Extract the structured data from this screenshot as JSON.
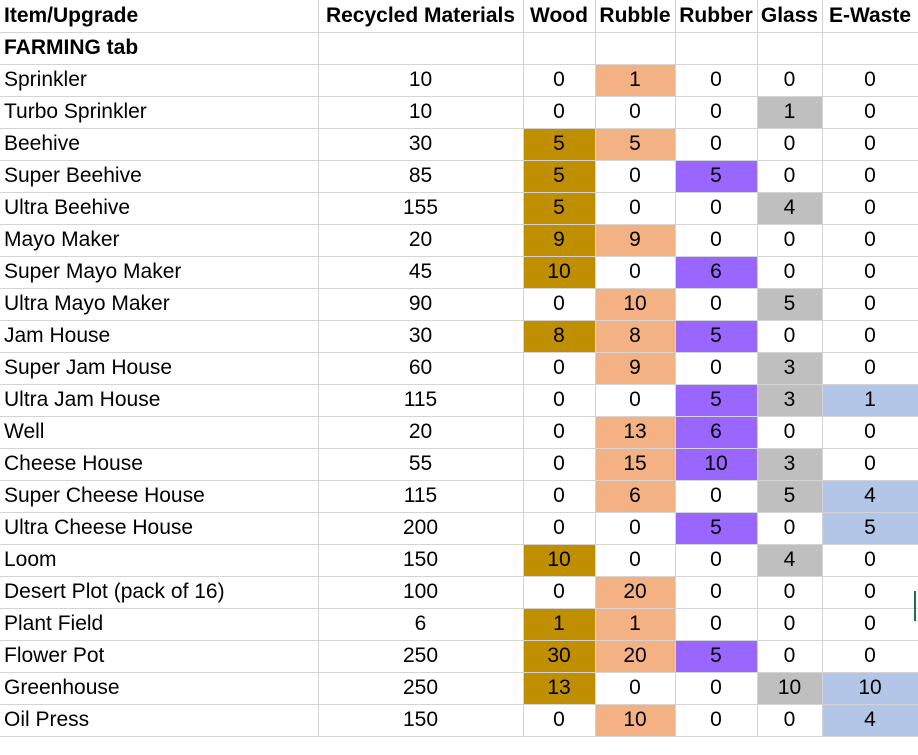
{
  "headers": [
    "Item/Upgrade",
    "Recycled Materials",
    "Wood",
    "Rubble",
    "Rubber",
    "Glass",
    "E-Waste"
  ],
  "section_label": "FARMING tab",
  "colors": {
    "wood": "#bf8f00",
    "rubble": "#f4b183",
    "rubber": "#9966ff",
    "glass": "#bfbfbf",
    "ewaste": "#b4c6e7"
  },
  "rows": [
    {
      "name": "Sprinkler",
      "recycled": "10",
      "wood": "0",
      "rubble": "1",
      "rubber": "0",
      "glass": "0",
      "ewaste": "0"
    },
    {
      "name": "Turbo Sprinkler",
      "recycled": "10",
      "wood": "0",
      "rubble": "0",
      "rubber": "0",
      "glass": "1",
      "ewaste": "0"
    },
    {
      "name": "Beehive",
      "recycled": "30",
      "wood": "5",
      "rubble": "5",
      "rubber": "0",
      "glass": "0",
      "ewaste": "0"
    },
    {
      "name": "Super Beehive",
      "recycled": "85",
      "wood": "5",
      "rubble": "0",
      "rubber": "5",
      "glass": "0",
      "ewaste": "0"
    },
    {
      "name": "Ultra Beehive",
      "recycled": "155",
      "wood": "5",
      "rubble": "0",
      "rubber": "0",
      "glass": "4",
      "ewaste": "0"
    },
    {
      "name": "Mayo Maker",
      "recycled": "20",
      "wood": "9",
      "rubble": "9",
      "rubber": "0",
      "glass": "0",
      "ewaste": "0"
    },
    {
      "name": "Super Mayo Maker",
      "recycled": "45",
      "wood": "10",
      "rubble": "0",
      "rubber": "6",
      "glass": "0",
      "ewaste": "0"
    },
    {
      "name": "Ultra Mayo Maker",
      "recycled": "90",
      "wood": "0",
      "rubble": "10",
      "rubber": "0",
      "glass": "5",
      "ewaste": "0"
    },
    {
      "name": "Jam House",
      "recycled": "30",
      "wood": "8",
      "rubble": "8",
      "rubber": "5",
      "glass": "0",
      "ewaste": "0"
    },
    {
      "name": "Super Jam House",
      "recycled": "60",
      "wood": "0",
      "rubble": "9",
      "rubber": "0",
      "glass": "3",
      "ewaste": "0"
    },
    {
      "name": "Ultra Jam House",
      "recycled": "115",
      "wood": "0",
      "rubble": "0",
      "rubber": "5",
      "glass": "3",
      "ewaste": "1"
    },
    {
      "name": "Well",
      "recycled": "20",
      "wood": "0",
      "rubble": "13",
      "rubber": "6",
      "glass": "0",
      "ewaste": "0"
    },
    {
      "name": "Cheese House",
      "recycled": "55",
      "wood": "0",
      "rubble": "15",
      "rubber": "10",
      "glass": "3",
      "ewaste": "0"
    },
    {
      "name": "Super Cheese House",
      "recycled": "115",
      "wood": "0",
      "rubble": "6",
      "rubber": "0",
      "glass": "5",
      "ewaste": "4"
    },
    {
      "name": "Ultra Cheese House",
      "recycled": "200",
      "wood": "0",
      "rubble": "0",
      "rubber": "5",
      "glass": "0",
      "ewaste": "5"
    },
    {
      "name": "Loom",
      "recycled": "150",
      "wood": "10",
      "rubble": "0",
      "rubber": "0",
      "glass": "4",
      "ewaste": "0"
    },
    {
      "name": "Desert Plot (pack of 16)",
      "recycled": "100",
      "wood": "0",
      "rubble": "20",
      "rubber": "0",
      "glass": "0",
      "ewaste": "0"
    },
    {
      "name": "Plant Field",
      "recycled": "6",
      "wood": "1",
      "rubble": "1",
      "rubber": "0",
      "glass": "0",
      "ewaste": "0"
    },
    {
      "name": "Flower Pot",
      "recycled": "250",
      "wood": "30",
      "rubble": "20",
      "rubber": "5",
      "glass": "0",
      "ewaste": "0"
    },
    {
      "name": "Greenhouse",
      "recycled": "250",
      "wood": "13",
      "rubble": "0",
      "rubber": "0",
      "glass": "10",
      "ewaste": "10"
    },
    {
      "name": "Oil Press",
      "recycled": "150",
      "wood": "0",
      "rubble": "10",
      "rubber": "0",
      "glass": "0",
      "ewaste": "4"
    }
  ]
}
